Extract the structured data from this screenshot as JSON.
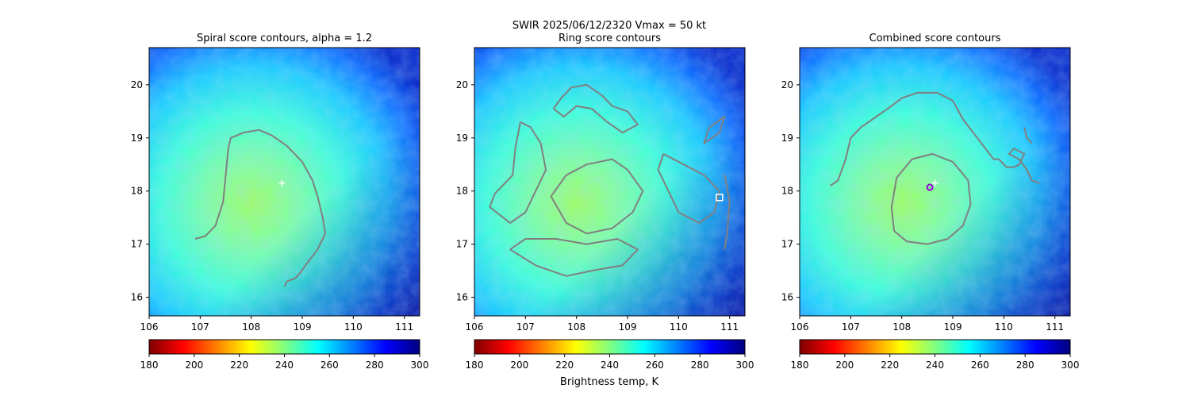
{
  "suptitle": "SWIR  2025/06/12/2320    Vmax = 50 kt",
  "colorbar_label": "Brightness temp, K",
  "colormap": [
    "#800000",
    "#ff0000",
    "#ff8000",
    "#ffff00",
    "#80ff80",
    "#00ffff",
    "#0080ff",
    "#0000ff",
    "#000080"
  ],
  "contour_color": "#808080",
  "chart_data": [
    {
      "type": "heatmap",
      "title": "Spiral score contours, alpha =  1.2",
      "xlim": [
        106.0,
        111.3
      ],
      "ylim": [
        15.65,
        20.7
      ],
      "xticks": [
        106,
        107,
        108,
        109,
        110,
        111
      ],
      "yticks": [
        16,
        17,
        18,
        19,
        20
      ],
      "colorbar": {
        "range": [
          180,
          300
        ],
        "ticks": [
          180,
          200,
          220,
          240,
          260,
          280,
          300
        ]
      },
      "contours": [
        {
          "name": "spiral",
          "points": [
            [
              106.9,
              17.1
            ],
            [
              107.1,
              17.15
            ],
            [
              107.3,
              17.35
            ],
            [
              107.45,
              17.8
            ],
            [
              107.5,
              18.3
            ],
            [
              107.55,
              18.8
            ],
            [
              107.6,
              19.0
            ],
            [
              107.85,
              19.1
            ],
            [
              108.15,
              19.15
            ],
            [
              108.4,
              19.05
            ],
            [
              108.7,
              18.85
            ],
            [
              109.0,
              18.55
            ],
            [
              109.2,
              18.2
            ],
            [
              109.3,
              17.9
            ],
            [
              109.4,
              17.5
            ],
            [
              109.45,
              17.2
            ],
            [
              109.3,
              16.9
            ],
            [
              109.1,
              16.65
            ],
            [
              108.95,
              16.45
            ],
            [
              108.85,
              16.35
            ],
            [
              108.7,
              16.3
            ],
            [
              108.65,
              16.2
            ]
          ]
        }
      ],
      "markers": [
        {
          "shape": "plus",
          "x": 108.6,
          "y": 18.15,
          "color": "#ffffff"
        }
      ]
    },
    {
      "type": "heatmap",
      "title": "Ring score contours",
      "xlim": [
        106.0,
        111.3
      ],
      "ylim": [
        15.65,
        20.7
      ],
      "xticks": [
        106,
        107,
        108,
        109,
        110,
        111
      ],
      "yticks": [
        16,
        17,
        18,
        19,
        20
      ],
      "colorbar": {
        "range": [
          180,
          300
        ],
        "ticks": [
          180,
          200,
          220,
          240,
          260,
          280,
          300
        ]
      },
      "contours": [
        {
          "name": "ring-north",
          "points": [
            [
              107.55,
              19.55
            ],
            [
              107.7,
              19.75
            ],
            [
              107.9,
              19.95
            ],
            [
              108.2,
              20.0
            ],
            [
              108.5,
              19.8
            ],
            [
              108.7,
              19.6
            ],
            [
              109.0,
              19.5
            ],
            [
              109.2,
              19.25
            ],
            [
              108.9,
              19.1
            ],
            [
              108.6,
              19.3
            ],
            [
              108.3,
              19.55
            ],
            [
              108.0,
              19.6
            ],
            [
              107.75,
              19.4
            ],
            [
              107.55,
              19.55
            ]
          ]
        },
        {
          "name": "ring-west",
          "points": [
            [
              106.9,
              19.3
            ],
            [
              106.8,
              18.8
            ],
            [
              106.75,
              18.3
            ],
            [
              106.4,
              17.95
            ],
            [
              106.3,
              17.7
            ],
            [
              106.7,
              17.4
            ],
            [
              107.0,
              17.6
            ],
            [
              107.2,
              18.0
            ],
            [
              107.4,
              18.4
            ],
            [
              107.3,
              18.9
            ],
            [
              107.1,
              19.2
            ],
            [
              106.9,
              19.3
            ]
          ]
        },
        {
          "name": "ring-center",
          "points": [
            [
              107.5,
              17.9
            ],
            [
              107.8,
              18.3
            ],
            [
              108.2,
              18.5
            ],
            [
              108.7,
              18.6
            ],
            [
              109.0,
              18.4
            ],
            [
              109.3,
              18.0
            ],
            [
              109.1,
              17.6
            ],
            [
              108.7,
              17.3
            ],
            [
              108.2,
              17.2
            ],
            [
              107.8,
              17.4
            ],
            [
              107.5,
              17.9
            ]
          ]
        },
        {
          "name": "ring-south",
          "points": [
            [
              106.7,
              16.9
            ],
            [
              107.2,
              16.6
            ],
            [
              107.8,
              16.4
            ],
            [
              108.3,
              16.5
            ],
            [
              108.9,
              16.6
            ],
            [
              109.2,
              16.9
            ],
            [
              108.8,
              17.1
            ],
            [
              108.2,
              17.0
            ],
            [
              107.6,
              17.1
            ],
            [
              107.0,
              17.1
            ],
            [
              106.7,
              16.9
            ]
          ]
        },
        {
          "name": "ring-east",
          "points": [
            [
              109.7,
              18.7
            ],
            [
              110.1,
              18.5
            ],
            [
              110.5,
              18.3
            ],
            [
              110.8,
              18.0
            ],
            [
              110.7,
              17.6
            ],
            [
              110.4,
              17.4
            ],
            [
              110.0,
              17.6
            ],
            [
              109.8,
              18.0
            ],
            [
              109.6,
              18.4
            ],
            [
              109.7,
              18.7
            ]
          ]
        },
        {
          "name": "ring-far-east",
          "points": [
            [
              110.8,
              19.1
            ],
            [
              110.9,
              19.4
            ],
            [
              110.6,
              19.2
            ],
            [
              110.5,
              18.9
            ],
            [
              110.8,
              19.1
            ]
          ]
        },
        {
          "name": "ring-outer-east",
          "points": [
            [
              110.9,
              18.3
            ],
            [
              111.0,
              17.8
            ],
            [
              110.95,
              17.2
            ],
            [
              110.9,
              16.9
            ]
          ]
        }
      ],
      "markers": [
        {
          "shape": "square",
          "x": 110.8,
          "y": 17.88,
          "color": "#ffffff"
        }
      ]
    },
    {
      "type": "heatmap",
      "title": "Combined score contours",
      "xlim": [
        106.0,
        111.3
      ],
      "ylim": [
        15.65,
        20.7
      ],
      "xticks": [
        106,
        107,
        108,
        109,
        110,
        111
      ],
      "yticks": [
        16,
        17,
        18,
        19,
        20
      ],
      "colorbar": {
        "range": [
          180,
          300
        ],
        "ticks": [
          180,
          200,
          220,
          240,
          260,
          280,
          300
        ]
      },
      "contours": [
        {
          "name": "outer-band",
          "points": [
            [
              106.6,
              18.1
            ],
            [
              106.75,
              18.2
            ],
            [
              106.9,
              18.6
            ],
            [
              107.0,
              19.0
            ],
            [
              107.2,
              19.2
            ],
            [
              107.5,
              19.4
            ],
            [
              107.8,
              19.6
            ],
            [
              108.0,
              19.75
            ],
            [
              108.3,
              19.85
            ],
            [
              108.7,
              19.85
            ],
            [
              109.0,
              19.7
            ],
            [
              109.2,
              19.35
            ],
            [
              109.4,
              19.1
            ],
            [
              109.6,
              18.85
            ],
            [
              109.8,
              18.6
            ],
            [
              109.9,
              18.6
            ],
            [
              110.05,
              18.45
            ],
            [
              110.2,
              18.45
            ],
            [
              110.3,
              18.5
            ],
            [
              110.4,
              18.7
            ],
            [
              110.2,
              18.8
            ],
            [
              110.1,
              18.7
            ],
            [
              110.3,
              18.6
            ],
            [
              110.45,
              18.4
            ],
            [
              110.55,
              18.2
            ],
            [
              110.7,
              18.15
            ]
          ]
        },
        {
          "name": "outer-band-tail",
          "points": [
            [
              110.4,
              19.2
            ],
            [
              110.45,
              19.0
            ],
            [
              110.55,
              18.9
            ]
          ]
        },
        {
          "name": "core-ring",
          "points": [
            [
              107.85,
              17.25
            ],
            [
              107.8,
              17.7
            ],
            [
              107.9,
              18.25
            ],
            [
              108.2,
              18.6
            ],
            [
              108.6,
              18.7
            ],
            [
              109.0,
              18.55
            ],
            [
              109.3,
              18.2
            ],
            [
              109.35,
              17.75
            ],
            [
              109.2,
              17.35
            ],
            [
              108.9,
              17.1
            ],
            [
              108.5,
              17.0
            ],
            [
              108.1,
              17.05
            ],
            [
              107.85,
              17.25
            ]
          ]
        }
      ],
      "markers": [
        {
          "shape": "circle",
          "x": 108.55,
          "y": 18.07,
          "color": "#9400d3"
        },
        {
          "shape": "plus",
          "x": 108.65,
          "y": 18.15,
          "color": "#ffffff"
        }
      ]
    }
  ]
}
